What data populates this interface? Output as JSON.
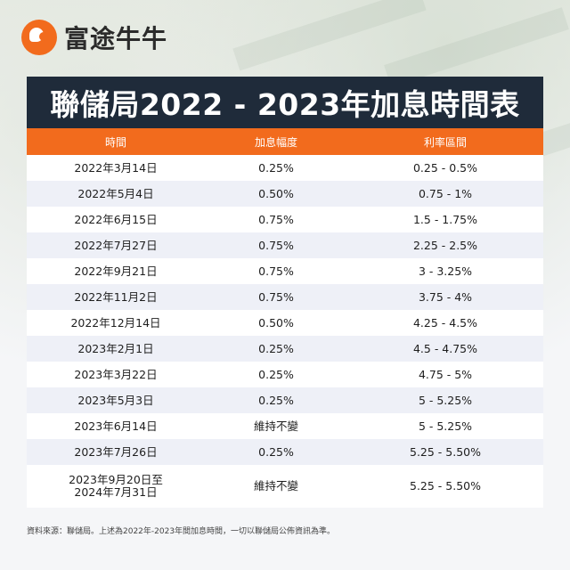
{
  "brand": {
    "name": "富途牛牛",
    "logo_icon": "futu-bull-logo",
    "accent": "#f26b1d"
  },
  "title": "聯儲局2022 - 2023年加息時間表",
  "table": {
    "headers": [
      "時間",
      "加息幅度",
      "利率區間"
    ],
    "rows": [
      [
        "2022年3月14日",
        "0.25%",
        "0.25 - 0.5%"
      ],
      [
        "2022年5月4日",
        "0.50%",
        "0.75 - 1%"
      ],
      [
        "2022年6月15日",
        "0.75%",
        "1.5 - 1.75%"
      ],
      [
        "2022年7月27日",
        "0.75%",
        "2.25 - 2.5%"
      ],
      [
        "2022年9月21日",
        "0.75%",
        "3 - 3.25%"
      ],
      [
        "2022年11月2日",
        "0.75%",
        "3.75 - 4%"
      ],
      [
        "2022年12月14日",
        "0.50%",
        "4.25 - 4.5%"
      ],
      [
        "2023年2月1日",
        "0.25%",
        "4.5 - 4.75%"
      ],
      [
        "2023年3月22日",
        "0.25%",
        "4.75 - 5%"
      ],
      [
        "2023年5月3日",
        "0.25%",
        "5 - 5.25%"
      ],
      [
        "2023年6月14日",
        "維持不變",
        "5 - 5.25%"
      ],
      [
        "2023年7月26日",
        "0.25%",
        "5.25 - 5.50%"
      ]
    ],
    "last_row": {
      "date_line1": "2023年9月20日至",
      "date_line2": "2024年7月31日",
      "change": "維持不變",
      "range": "5.25 - 5.50%"
    }
  },
  "footnote": "資料來源：聯儲局。上述為2022年-2023年間加息時間，一切以聯儲局公佈資訊為準。"
}
